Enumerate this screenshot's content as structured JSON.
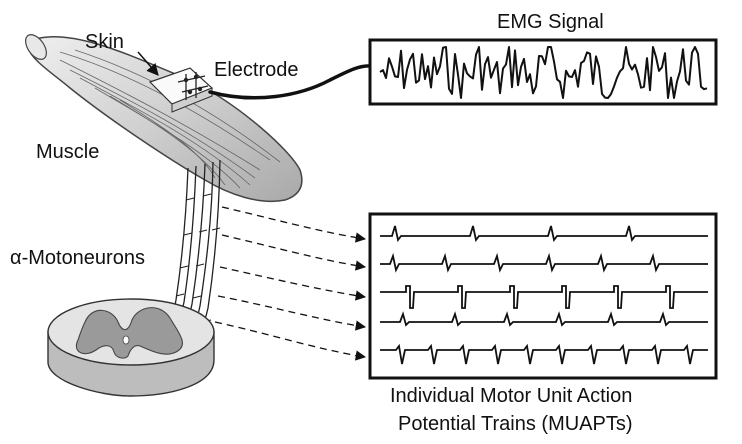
{
  "labels": {
    "skin": "Skin",
    "electrode": "Electrode",
    "muscle": "Muscle",
    "motoneurons": "α-Motoneurons",
    "emg_title": "EMG Signal",
    "muapt_line1": "Individual Motor Unit Action",
    "muapt_line2": "Potential Trains (MUAPTs)"
  },
  "colors": {
    "line": "#111111",
    "muscle_fill": "#d6d6d6",
    "muscle_stroke": "#555555",
    "spine_top": "#e2e2e2",
    "spine_side": "#bdbdbd",
    "grey_matter": "#9a9a9a"
  }
}
